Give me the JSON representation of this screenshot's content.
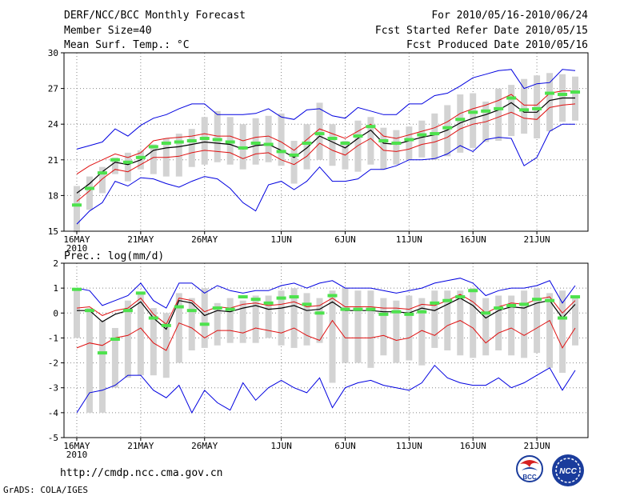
{
  "header": {
    "title": "DERF/NCC/BCC Monthly Forecast",
    "member_size": "Member Size=40",
    "period": "For 2010/05/16-2010/06/24",
    "started": "Fcst Started Refer Date 2010/05/15",
    "produced": "Fcst Produced Date 2010/05/16"
  },
  "footer": {
    "url": "http://cmdp.ncc.cma.gov.cn",
    "grads": "GrADS: COLA/IGES"
  },
  "logos": {
    "left": "BCC",
    "right": "NCC"
  },
  "colors": {
    "box": "#d3d3d3",
    "median": "#4de24d",
    "mean": "#000000",
    "inner": "#e01010",
    "outer": "#0000e0"
  },
  "chart_data": [
    {
      "type": "box-line",
      "title": "Mean Surf. Temp.: °C",
      "x_ticks": [
        "16MAY",
        "21MAY",
        "26MAY",
        "1JUN",
        "6JUN",
        "11JUN",
        "16JUN",
        "21JUN"
      ],
      "x_tick_days": [
        0,
        5,
        10,
        16,
        21,
        26,
        31,
        36
      ],
      "x_year": "2010",
      "ylim": [
        15,
        30
      ],
      "y_ticks": [
        15,
        18,
        21,
        24,
        27,
        30
      ],
      "days": 40,
      "series": [
        {
          "name": "box_top",
          "values": [
            18.8,
            19.6,
            20.4,
            21.2,
            21.6,
            21.8,
            22.3,
            22.8,
            23.2,
            23.6,
            24.6,
            25.1,
            24.6,
            24.0,
            24.5,
            24.7,
            24.9,
            22.6,
            24.0,
            25.8,
            24.0,
            22.6,
            24.3,
            24.6,
            23.7,
            23.5,
            23.8,
            24.3,
            24.9,
            25.6,
            26.5,
            26.6,
            25.9,
            27.0,
            27.3,
            27.8,
            28.1,
            28.3,
            28.2,
            28.0
          ]
        },
        {
          "name": "box_bottom",
          "values": [
            14.9,
            16.8,
            18.2,
            19.8,
            19.2,
            20.2,
            19.8,
            19.6,
            19.6,
            20.4,
            20.6,
            20.8,
            20.6,
            20.2,
            20.6,
            20.8,
            20.5,
            19.0,
            20.2,
            21.0,
            20.5,
            20.2,
            20.0,
            20.6,
            20.2,
            20.6,
            21.0,
            21.2,
            21.0,
            21.3,
            21.6,
            22.0,
            22.5,
            22.6,
            23.0,
            23.2,
            22.8,
            23.4,
            24.2,
            24.3
          ]
        },
        {
          "name": "median",
          "values": [
            17.2,
            18.6,
            19.9,
            21.0,
            20.8,
            21.2,
            22.1,
            22.4,
            22.5,
            22.6,
            22.8,
            22.7,
            22.5,
            22.0,
            22.4,
            22.3,
            21.7,
            21.4,
            22.4,
            23.2,
            22.8,
            22.4,
            23.0,
            23.8,
            22.6,
            22.4,
            22.7,
            23.1,
            23.2,
            23.7,
            24.4,
            25.0,
            25.1,
            25.3,
            26.2,
            25.2,
            25.3,
            26.6,
            26.5,
            26.7
          ]
        },
        {
          "name": "mean",
          "values": [
            18.2,
            19.0,
            20.0,
            20.8,
            20.6,
            21.0,
            21.8,
            22.0,
            22.1,
            22.3,
            22.5,
            22.4,
            22.3,
            21.9,
            22.2,
            22.3,
            21.8,
            21.2,
            22.0,
            23.0,
            22.5,
            22.0,
            22.8,
            23.5,
            22.4,
            22.3,
            22.6,
            22.9,
            23.1,
            23.5,
            24.1,
            24.5,
            24.8,
            25.2,
            25.8,
            25.0,
            25.0,
            26.0,
            26.2,
            26.2
          ]
        },
        {
          "name": "upper_red",
          "values": [
            19.8,
            20.5,
            21.0,
            21.5,
            21.2,
            21.6,
            22.6,
            22.8,
            22.9,
            23.0,
            23.2,
            23.0,
            23.0,
            22.6,
            22.9,
            23.0,
            22.5,
            21.8,
            22.7,
            23.6,
            23.2,
            22.8,
            23.4,
            24.0,
            23.0,
            22.8,
            23.1,
            23.4,
            23.7,
            24.2,
            24.9,
            25.3,
            25.6,
            26.0,
            26.5,
            25.6,
            25.6,
            26.6,
            26.8,
            26.8
          ]
        },
        {
          "name": "lower_red",
          "values": [
            17.5,
            18.4,
            19.4,
            20.2,
            20.0,
            20.6,
            21.2,
            21.2,
            21.3,
            21.6,
            21.8,
            21.7,
            21.6,
            21.1,
            21.5,
            21.6,
            21.0,
            20.6,
            21.3,
            22.4,
            21.8,
            21.4,
            22.2,
            22.8,
            21.8,
            21.7,
            21.9,
            22.3,
            22.5,
            22.9,
            23.6,
            24.0,
            24.2,
            24.6,
            25.0,
            24.5,
            24.4,
            25.4,
            25.6,
            25.7
          ]
        },
        {
          "name": "upper_blue",
          "values": [
            21.9,
            22.2,
            22.5,
            23.6,
            23.0,
            23.9,
            24.5,
            24.8,
            25.3,
            25.7,
            25.7,
            24.8,
            24.8,
            24.8,
            24.9,
            25.3,
            24.6,
            24.4,
            25.2,
            25.3,
            24.7,
            24.5,
            25.4,
            25.1,
            24.8,
            24.8,
            25.7,
            25.7,
            26.4,
            26.6,
            27.2,
            27.9,
            28.2,
            28.5,
            28.6,
            27.0,
            27.4,
            27.5,
            28.6,
            28.5
          ]
        },
        {
          "name": "lower_blue",
          "values": [
            15.6,
            16.7,
            17.4,
            19.2,
            18.8,
            19.5,
            19.4,
            19.0,
            18.7,
            19.2,
            19.6,
            19.4,
            18.6,
            17.4,
            16.7,
            18.9,
            19.2,
            18.5,
            19.2,
            20.4,
            19.2,
            19.2,
            19.4,
            20.2,
            20.2,
            20.5,
            21.0,
            21.0,
            21.1,
            21.5,
            22.2,
            21.7,
            22.7,
            22.9,
            22.8,
            20.5,
            21.2,
            23.4,
            24.0,
            24.0
          ]
        }
      ]
    },
    {
      "type": "box-line",
      "title": "Prec.: log(mm/d)",
      "x_ticks": [
        "16MAY",
        "21MAY",
        "26MAY",
        "1JUN",
        "6JUN",
        "11JUN",
        "16JUN",
        "21JUN"
      ],
      "x_tick_days": [
        0,
        5,
        10,
        16,
        21,
        26,
        31,
        36
      ],
      "x_year": "2010",
      "ylim": [
        -5,
        2
      ],
      "y_ticks": [
        -5,
        -4,
        -3,
        -2,
        -1,
        0,
        1,
        2
      ],
      "days": 40,
      "series": [
        {
          "name": "box_top",
          "values": [
            0.9,
            0.2,
            -0.3,
            -0.6,
            0.5,
            0.8,
            0.2,
            0.0,
            0.8,
            0.6,
            1.0,
            0.4,
            0.6,
            0.5,
            0.7,
            0.7,
            0.9,
            1.0,
            0.8,
            0.6,
            0.9,
            1.0,
            0.9,
            0.9,
            0.6,
            0.5,
            0.7,
            0.6,
            0.9,
            0.9,
            0.9,
            1.0,
            0.6,
            0.7,
            0.7,
            0.9,
            1.0,
            0.8,
            0.9,
            0.7
          ]
        },
        {
          "name": "box_bottom",
          "values": [
            -1.0,
            -4.0,
            -4.0,
            -3.0,
            -2.6,
            -2.5,
            -2.5,
            -2.6,
            -2.0,
            -1.5,
            -1.4,
            -1.3,
            -1.2,
            -1.2,
            -1.2,
            -1.0,
            -1.3,
            -1.4,
            -1.3,
            -1.2,
            -2.8,
            -2.0,
            -2.0,
            -2.2,
            -1.7,
            -2.0,
            -1.9,
            -2.1,
            -1.4,
            -1.5,
            -1.7,
            -1.8,
            -1.7,
            -1.5,
            -1.7,
            -1.8,
            -1.6,
            -2.2,
            -2.4,
            -1.3
          ]
        },
        {
          "name": "median",
          "values": [
            0.95,
            0.1,
            -1.6,
            -1.05,
            0.1,
            0.8,
            -0.2,
            -0.5,
            0.25,
            0.1,
            -0.45,
            0.2,
            0.15,
            0.65,
            0.55,
            0.4,
            0.6,
            0.65,
            0.35,
            0.0,
            0.7,
            0.15,
            0.15,
            0.15,
            -0.05,
            0.05,
            -0.05,
            0.05,
            0.4,
            0.5,
            0.65,
            0.9,
            0.0,
            0.2,
            0.3,
            0.35,
            0.55,
            0.5,
            -0.2,
            0.65
          ]
        },
        {
          "name": "mean",
          "values": [
            0.1,
            0.1,
            -0.35,
            -0.05,
            0.1,
            0.45,
            -0.2,
            -0.65,
            0.5,
            0.4,
            -0.1,
            0.1,
            0.05,
            0.2,
            0.3,
            0.15,
            0.2,
            0.3,
            0.1,
            0.15,
            0.45,
            0.1,
            0.1,
            0.1,
            0.05,
            0.05,
            0.0,
            0.2,
            0.1,
            0.35,
            0.6,
            0.3,
            -0.2,
            0.1,
            0.25,
            0.2,
            0.4,
            0.5,
            -0.2,
            0.35
          ]
        },
        {
          "name": "upper_red",
          "values": [
            0.2,
            0.25,
            -0.1,
            0.1,
            0.2,
            0.6,
            -0.05,
            -0.45,
            0.6,
            0.5,
            0.05,
            0.25,
            0.2,
            0.35,
            0.4,
            0.3,
            0.35,
            0.45,
            0.25,
            0.3,
            0.6,
            0.25,
            0.25,
            0.25,
            0.2,
            0.2,
            0.15,
            0.35,
            0.3,
            0.5,
            0.75,
            0.45,
            0.0,
            0.25,
            0.4,
            0.35,
            0.55,
            0.65,
            0.0,
            0.5
          ]
        },
        {
          "name": "lower_red",
          "values": [
            -1.4,
            -1.2,
            -1.3,
            -1.0,
            -0.9,
            -0.6,
            -1.2,
            -1.5,
            -0.4,
            -0.6,
            -1.0,
            -0.7,
            -0.7,
            -0.8,
            -0.6,
            -0.7,
            -0.8,
            -0.6,
            -0.9,
            -1.1,
            -0.3,
            -1.0,
            -1.0,
            -1.0,
            -0.9,
            -1.1,
            -1.0,
            -0.7,
            -0.9,
            -0.5,
            -0.3,
            -0.6,
            -1.2,
            -0.8,
            -0.6,
            -0.9,
            -0.6,
            -0.3,
            -1.4,
            -0.6
          ]
        },
        {
          "name": "upper_blue",
          "values": [
            1.0,
            0.9,
            0.3,
            0.5,
            0.7,
            1.2,
            0.5,
            0.2,
            1.2,
            1.2,
            0.8,
            1.1,
            0.9,
            0.8,
            0.9,
            0.9,
            1.1,
            1.2,
            1.0,
            1.2,
            1.3,
            1.0,
            1.0,
            1.0,
            0.9,
            0.8,
            0.9,
            1.0,
            1.2,
            1.3,
            1.4,
            1.2,
            0.7,
            0.9,
            1.0,
            1.0,
            1.1,
            1.3,
            0.4,
            1.1
          ]
        },
        {
          "name": "lower_blue",
          "values": [
            -4.0,
            -3.2,
            -3.1,
            -2.9,
            -2.5,
            -2.5,
            -3.1,
            -3.4,
            -2.9,
            -4.0,
            -3.1,
            -3.6,
            -3.9,
            -2.8,
            -3.5,
            -3.0,
            -2.7,
            -3.0,
            -3.2,
            -2.6,
            -3.8,
            -3.0,
            -2.8,
            -2.7,
            -2.9,
            -3.0,
            -3.1,
            -2.8,
            -2.1,
            -2.6,
            -2.8,
            -2.9,
            -2.9,
            -2.6,
            -3.0,
            -2.8,
            -2.5,
            -2.2,
            -3.1,
            -2.3
          ]
        }
      ]
    }
  ]
}
